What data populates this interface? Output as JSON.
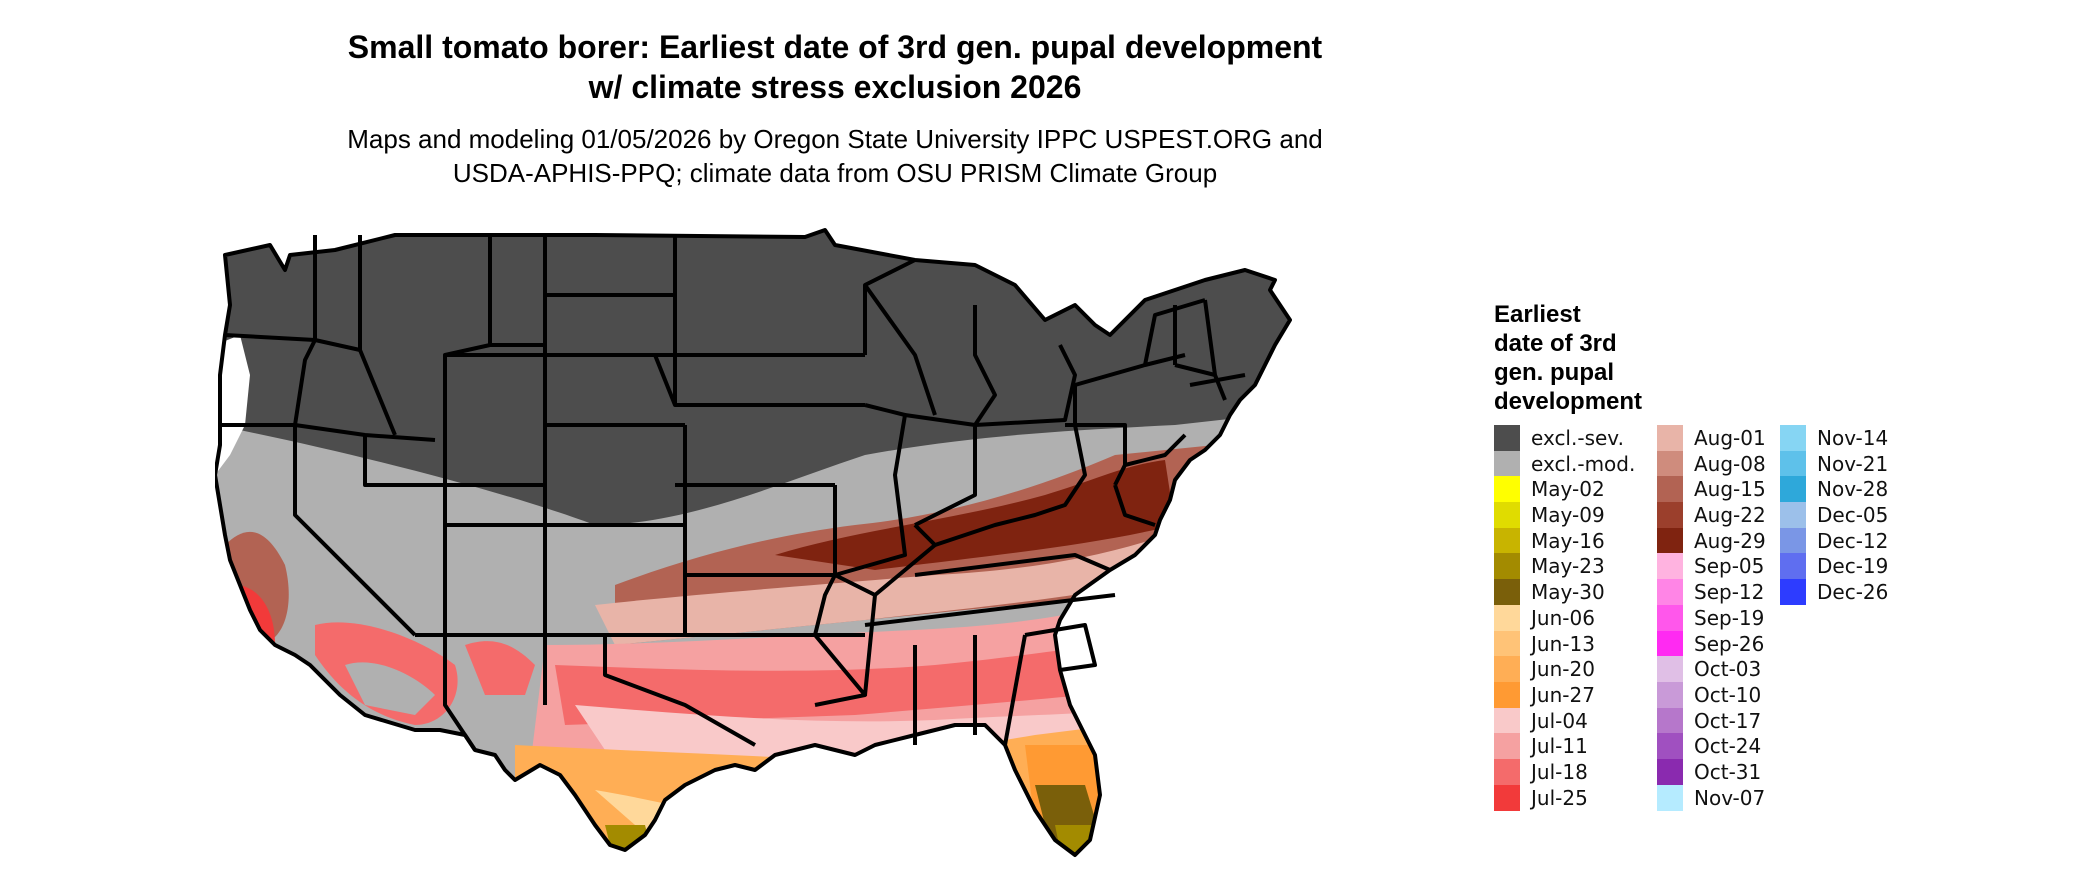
{
  "title_lines": [
    "Small tomato borer: Earliest date of 3rd gen. pupal development",
    "w/ climate stress exclusion 2026"
  ],
  "subtitle_lines": [
    "Maps and modeling 01/05/2026 by Oregon State University IPPC USPEST.ORG and",
    "USDA-APHIS-PPQ; climate data from OSU PRISM Climate Group"
  ],
  "legend": {
    "title_lines": [
      "Earliest",
      "date of 3rd",
      "gen. pupal",
      "development"
    ],
    "items": [
      {
        "label": "excl.-sev.",
        "color": "#4d4d4d"
      },
      {
        "label": "excl.-mod.",
        "color": "#b0b0b0"
      },
      {
        "label": "May-02",
        "color": "#ffff00"
      },
      {
        "label": "May-09",
        "color": "#e0dc00"
      },
      {
        "label": "May-16",
        "color": "#c8b400"
      },
      {
        "label": "May-23",
        "color": "#a38b00"
      },
      {
        "label": "May-30",
        "color": "#7a5f0a"
      },
      {
        "label": "Jun-06",
        "color": "#ffd89a"
      },
      {
        "label": "Jun-13",
        "color": "#ffc377"
      },
      {
        "label": "Jun-20",
        "color": "#ffae55"
      },
      {
        "label": "Jun-27",
        "color": "#ff9a33"
      },
      {
        "label": "Jul-04",
        "color": "#f9c9c9"
      },
      {
        "label": "Jul-11",
        "color": "#f5a1a1"
      },
      {
        "label": "Jul-18",
        "color": "#f46b6b"
      },
      {
        "label": "Jul-25",
        "color": "#f23a3a"
      },
      {
        "label": "Aug-01",
        "color": "#e8b4a8"
      },
      {
        "label": "Aug-08",
        "color": "#cf8c7d"
      },
      {
        "label": "Aug-15",
        "color": "#b26353"
      },
      {
        "label": "Aug-22",
        "color": "#9b3f2c"
      },
      {
        "label": "Aug-29",
        "color": "#7f2310"
      },
      {
        "label": "Sep-05",
        "color": "#ffb3e0"
      },
      {
        "label": "Sep-12",
        "color": "#ff85e6"
      },
      {
        "label": "Sep-19",
        "color": "#ff57eb"
      },
      {
        "label": "Sep-26",
        "color": "#ff2af2"
      },
      {
        "label": "Oct-03",
        "color": "#e0bfe6"
      },
      {
        "label": "Oct-10",
        "color": "#c99ad8"
      },
      {
        "label": "Oct-17",
        "color": "#b677cb"
      },
      {
        "label": "Oct-24",
        "color": "#a050c0"
      },
      {
        "label": "Oct-31",
        "color": "#8a2aaf"
      },
      {
        "label": "Nov-07",
        "color": "#b5ebff"
      },
      {
        "label": "Nov-14",
        "color": "#86d5f3"
      },
      {
        "label": "Nov-21",
        "color": "#5ec1ea"
      },
      {
        "label": "Nov-28",
        "color": "#2ea8da"
      },
      {
        "label": "Dec-05",
        "color": "#9cc0ea"
      },
      {
        "label": "Dec-12",
        "color": "#7a96e6"
      },
      {
        "label": "Dec-19",
        "color": "#5f6ef0"
      },
      {
        "label": "Dec-26",
        "color": "#2d3cff"
      }
    ]
  }
}
